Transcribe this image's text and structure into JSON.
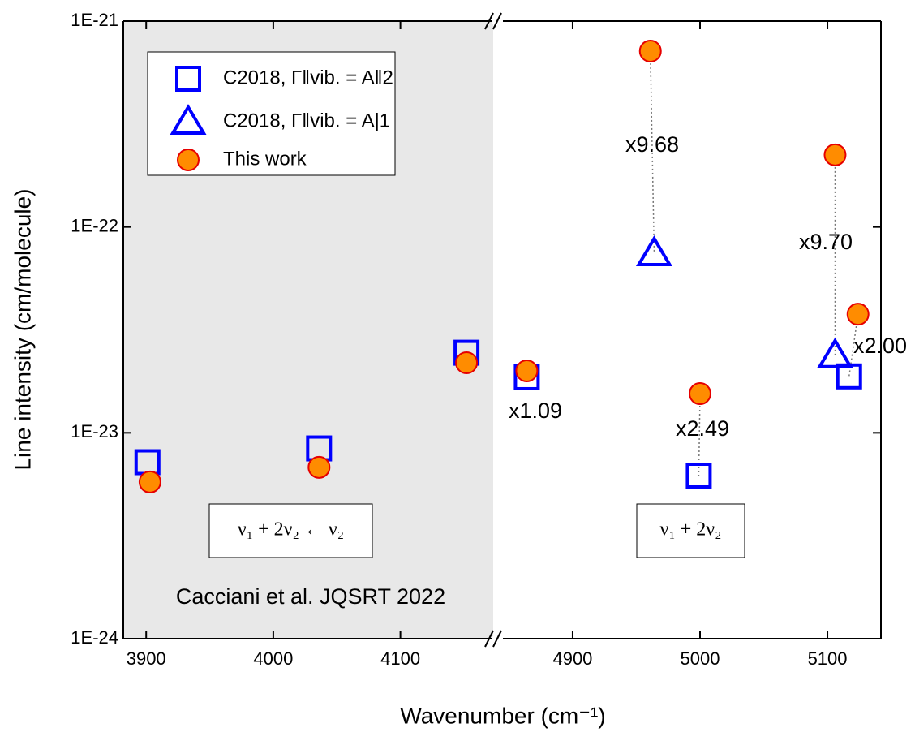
{
  "chart_data": {
    "type": "scatter",
    "x_label": "Wavenumber (cm⁻¹)",
    "y_label": "Line intensity (cm/molecule)",
    "log_y": true,
    "ylim": [
      1e-24,
      1e-21
    ],
    "yticks": [
      {
        "value": 1e-24,
        "label": "1E-24"
      },
      {
        "value": 1e-23,
        "label": "1E-23"
      },
      {
        "value": 1e-22,
        "label": "1E-22"
      },
      {
        "value": 1e-21,
        "label": "1E-21"
      }
    ],
    "x_segments": [
      {
        "xlim": [
          3882,
          4173
        ],
        "xticks": [
          3900,
          4000,
          4100
        ],
        "shaded": true
      },
      {
        "xlim": [
          4844,
          5142
        ],
        "xticks": [
          4900,
          5000,
          5100
        ],
        "shaded": false
      }
    ],
    "legend_position": "upper left",
    "series": [
      {
        "name": "C2018, Γ‖vib. = A‖2",
        "marker": "square",
        "color": "#0000ff",
        "x": [
          3901,
          4036,
          4152,
          4864,
          4999,
          5117
        ],
        "values": [
          7.2e-24,
          8.4e-24,
          2.45e-23,
          1.86e-23,
          6.2e-24,
          1.88e-23
        ]
      },
      {
        "name": "C2018, Γ‖vib. = A|1",
        "marker": "triangle",
        "color": "#0000ff",
        "x": [
          4964,
          5106
        ],
        "values": [
          7.46e-23,
          2.38e-23
        ]
      },
      {
        "name": "This work",
        "marker": "circle",
        "color": "#ff8c00",
        "x": [
          3903,
          4036,
          4152,
          4864,
          5000,
          4961,
          5106,
          5124
        ],
        "values": [
          5.77e-24,
          6.8e-24,
          2.19e-23,
          2e-23,
          1.55e-23,
          7.15e-22,
          2.24e-22,
          3.77e-23
        ]
      }
    ],
    "annotations": [
      "x9.68",
      "x9.70",
      "x1.09",
      "x2.49",
      "x2.00"
    ],
    "band_labels": [
      "ν₁ + 2ν₂ ← ν₂",
      "ν₁ + 2ν₂"
    ],
    "source": "Cacciani et al. JQSRT 2022"
  }
}
